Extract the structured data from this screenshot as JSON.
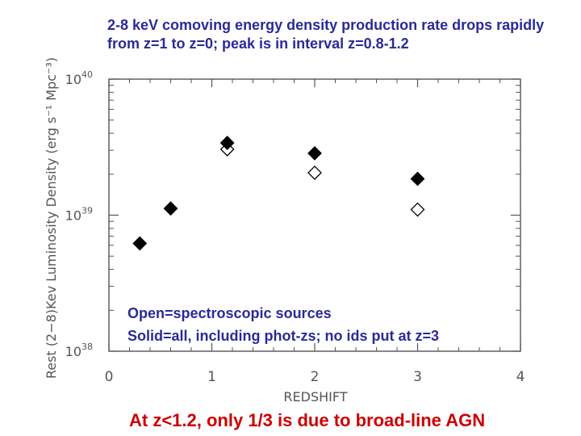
{
  "title": "2-8 keV comoving energy density production rate drops rapidly from z=1 to z=0; peak is in interval z=0.8-1.2",
  "legend_note": {
    "line1": "Open=spectroscopic sources",
    "line2": "Solid=all, including phot-zs; no ids put at z=3"
  },
  "conclusion": "At z<1.2, only 1/3 is due to broad-line AGN",
  "colors": {
    "title": "#2a2a9a",
    "conclusion": "#cc0000",
    "axis": "#555555",
    "marker": "#000000"
  },
  "chart_data": {
    "type": "scatter",
    "xlabel": "REDSHIFT",
    "ylabel": "Rest (2−8)Kev Luminosity Density (erg s⁻¹ Mpc⁻³)",
    "xlim": [
      0,
      4
    ],
    "ylim": [
      1e+38,
      1e+40
    ],
    "yscale": "log",
    "x_ticks": [
      "0",
      "1",
      "2",
      "3",
      "4"
    ],
    "y_ticks": [
      {
        "value": 1e+38,
        "base": "10",
        "exp": "38"
      },
      {
        "value": 1e+39,
        "base": "10",
        "exp": "39"
      },
      {
        "value": 1e+40,
        "base": "10",
        "exp": "40"
      }
    ],
    "series": [
      {
        "marker": "diamond-filled",
        "points": [
          {
            "x": 0.3,
            "y": 6.2e+38
          },
          {
            "x": 0.6,
            "y": 1.12e+39
          },
          {
            "x": 1.15,
            "y": 3.4e+39
          },
          {
            "x": 2.0,
            "y": 2.85e+39
          },
          {
            "x": 3.0,
            "y": 1.85e+39
          }
        ]
      },
      {
        "marker": "diamond-open",
        "points": [
          {
            "x": 1.15,
            "y": 3.05e+39
          },
          {
            "x": 2.0,
            "y": 2.05e+39
          },
          {
            "x": 3.0,
            "y": 1.1e+39
          }
        ]
      }
    ]
  }
}
